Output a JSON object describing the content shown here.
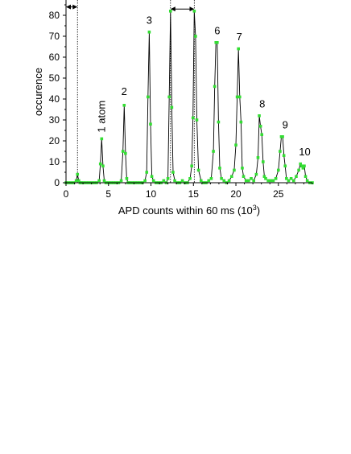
{
  "chart_data": {
    "type": "line",
    "title": "",
    "xlabel": "APD counts within 60 ms (10",
    "xlabel_sup": "3",
    "xlabel_end": ")",
    "ylabel": "occurence",
    "xlim": [
      0,
      29
    ],
    "ylim": [
      0,
      85
    ],
    "xticks": [
      0,
      5,
      10,
      15,
      20,
      25
    ],
    "xtick_labels": [
      "0",
      "5",
      "10",
      "15",
      "20",
      "25"
    ],
    "yticks": [
      0,
      10,
      20,
      30,
      40,
      50,
      60,
      70,
      80
    ],
    "ytick_labels": [
      "0",
      "10",
      "20",
      "30",
      "40",
      "50",
      "60",
      "70",
      "80"
    ],
    "grid": false,
    "line_color": "#000000",
    "marker_color": "#33dd33",
    "series": [
      {
        "name": "",
        "x": [
          0,
          0.3,
          0.6,
          0.9,
          1.2,
          1.35,
          1.5,
          1.65,
          1.8,
          2.1,
          2.4,
          2.7,
          3.0,
          3.3,
          3.6,
          3.9,
          4.05,
          4.2,
          4.35,
          4.5,
          4.7,
          5.0,
          5.3,
          5.6,
          5.9,
          6.2,
          6.5,
          6.7,
          6.85,
          7.0,
          7.15,
          7.3,
          7.5,
          7.8,
          8.1,
          8.4,
          8.7,
          9.0,
          9.3,
          9.5,
          9.65,
          9.8,
          9.95,
          10.1,
          10.3,
          10.6,
          10.9,
          11.2,
          11.5,
          11.8,
          12.0,
          12.15,
          12.3,
          12.45,
          12.6,
          12.8,
          13.1,
          13.4,
          13.7,
          14.0,
          14.3,
          14.6,
          14.8,
          14.95,
          15.1,
          15.25,
          15.4,
          15.6,
          15.9,
          16.2,
          16.5,
          16.8,
          17.1,
          17.35,
          17.5,
          17.65,
          17.8,
          17.95,
          18.1,
          18.3,
          18.6,
          18.9,
          19.2,
          19.5,
          19.8,
          20.0,
          20.15,
          20.3,
          20.45,
          20.6,
          20.75,
          20.9,
          21.2,
          21.5,
          21.8,
          22.1,
          22.4,
          22.6,
          22.75,
          22.9,
          23.05,
          23.2,
          23.35,
          23.5,
          23.8,
          24.1,
          24.4,
          24.7,
          25.0,
          25.2,
          25.35,
          25.5,
          25.65,
          25.8,
          25.95,
          26.2,
          26.5,
          26.8,
          27.1,
          27.4,
          27.6,
          27.75,
          27.9,
          28.05,
          28.2,
          28.4,
          28.7,
          29.0
        ],
        "y": [
          0,
          0,
          0,
          0,
          1,
          4,
          1,
          0,
          0,
          0,
          0,
          0,
          0,
          0,
          0,
          1,
          9,
          21,
          8,
          1,
          0,
          0,
          0,
          0,
          0,
          0,
          1,
          15,
          37,
          14,
          2,
          0,
          0,
          0,
          0,
          0,
          0,
          0,
          1,
          5,
          41,
          72,
          28,
          3,
          1,
          0,
          0,
          0,
          1,
          0,
          2,
          41,
          82,
          36,
          5,
          1,
          0,
          0,
          1,
          0,
          0,
          2,
          8,
          31,
          82,
          70,
          30,
          6,
          1,
          0,
          0,
          1,
          2,
          15,
          46,
          67,
          67,
          29,
          7,
          2,
          1,
          0,
          1,
          3,
          6,
          18,
          41,
          64,
          41,
          29,
          7,
          3,
          1,
          1,
          2,
          1,
          4,
          12,
          32,
          27,
          23,
          10,
          3,
          2,
          1,
          1,
          1,
          2,
          6,
          15,
          22,
          22,
          13,
          8,
          2,
          1,
          2,
          1,
          3,
          6,
          9,
          8,
          7,
          8,
          3,
          1,
          0,
          0
        ]
      }
    ],
    "annotations": [
      {
        "text": "1 atom",
        "x": 4.2,
        "y": 24,
        "rotate": true
      },
      {
        "text": "2",
        "x": 6.85,
        "y": 42
      },
      {
        "text": "3",
        "x": 9.8,
        "y": 76
      },
      {
        "text": "6",
        "x": 17.8,
        "y": 71
      },
      {
        "text": "7",
        "x": 20.4,
        "y": 68
      },
      {
        "text": "8",
        "x": 23.1,
        "y": 36
      },
      {
        "text": "9",
        "x": 25.8,
        "y": 26
      },
      {
        "text": "10",
        "x": 28.1,
        "y": 13
      }
    ],
    "guides": {
      "dotted_x": [
        1.35,
        12.3,
        15.1
      ],
      "arrows": [
        {
          "x1": 0,
          "x2": 1.35,
          "y": 84
        },
        {
          "x1": 12.3,
          "x2": 15.1,
          "y": 83
        }
      ]
    }
  }
}
